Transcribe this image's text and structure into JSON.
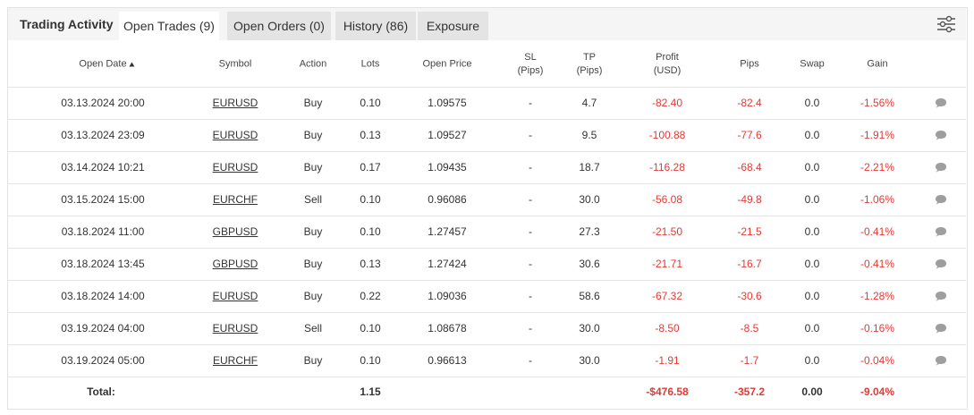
{
  "tabs": {
    "title": "Trading Activity",
    "items": [
      "Open Trades (9)",
      "Open Orders (0)",
      "History (86)",
      "Exposure"
    ]
  },
  "table": {
    "columns": [
      [
        "Open Date"
      ],
      [
        "Symbol"
      ],
      [
        "Action"
      ],
      [
        "Lots"
      ],
      [
        "Open Price"
      ],
      [
        "SL",
        "(Pips)"
      ],
      [
        "TP",
        "(Pips)"
      ],
      [
        "Profit",
        "(USD)"
      ],
      [
        "Pips"
      ],
      [
        "Swap"
      ],
      [
        "Gain"
      ]
    ],
    "rows": [
      [
        "03.13.2024 20:00",
        "EURUSD",
        "Buy",
        "0.10",
        "1.09575",
        "-",
        "4.7",
        "-82.40",
        "-82.4",
        "0.0",
        "-1.56%"
      ],
      [
        "03.13.2024 23:09",
        "EURUSD",
        "Buy",
        "0.13",
        "1.09527",
        "-",
        "9.5",
        "-100.88",
        "-77.6",
        "0.0",
        "-1.91%"
      ],
      [
        "03.14.2024 10:21",
        "EURUSD",
        "Buy",
        "0.17",
        "1.09435",
        "-",
        "18.7",
        "-116.28",
        "-68.4",
        "0.0",
        "-2.21%"
      ],
      [
        "03.15.2024 15:00",
        "EURCHF",
        "Sell",
        "0.10",
        "0.96086",
        "-",
        "30.0",
        "-56.08",
        "-49.8",
        "0.0",
        "-1.06%"
      ],
      [
        "03.18.2024 11:00",
        "GBPUSD",
        "Buy",
        "0.10",
        "1.27457",
        "-",
        "27.3",
        "-21.50",
        "-21.5",
        "0.0",
        "-0.41%"
      ],
      [
        "03.18.2024 13:45",
        "GBPUSD",
        "Buy",
        "0.13",
        "1.27424",
        "-",
        "30.6",
        "-21.71",
        "-16.7",
        "0.0",
        "-0.41%"
      ],
      [
        "03.18.2024 14:00",
        "EURUSD",
        "Buy",
        "0.22",
        "1.09036",
        "-",
        "58.6",
        "-67.32",
        "-30.6",
        "0.0",
        "-1.28%"
      ],
      [
        "03.19.2024 04:00",
        "EURUSD",
        "Sell",
        "0.10",
        "1.08678",
        "-",
        "30.0",
        "-8.50",
        "-8.5",
        "0.0",
        "-0.16%"
      ],
      [
        "03.19.2024 05:00",
        "EURCHF",
        "Buy",
        "0.10",
        "0.96613",
        "-",
        "30.0",
        "-1.91",
        "-1.7",
        "0.0",
        "-0.04%"
      ]
    ],
    "totals": {
      "label": "Total:",
      "lots": "1.15",
      "profit": "-$476.58",
      "pips": "-357.2",
      "swap": "0.00",
      "gain": "-9.04%"
    }
  }
}
